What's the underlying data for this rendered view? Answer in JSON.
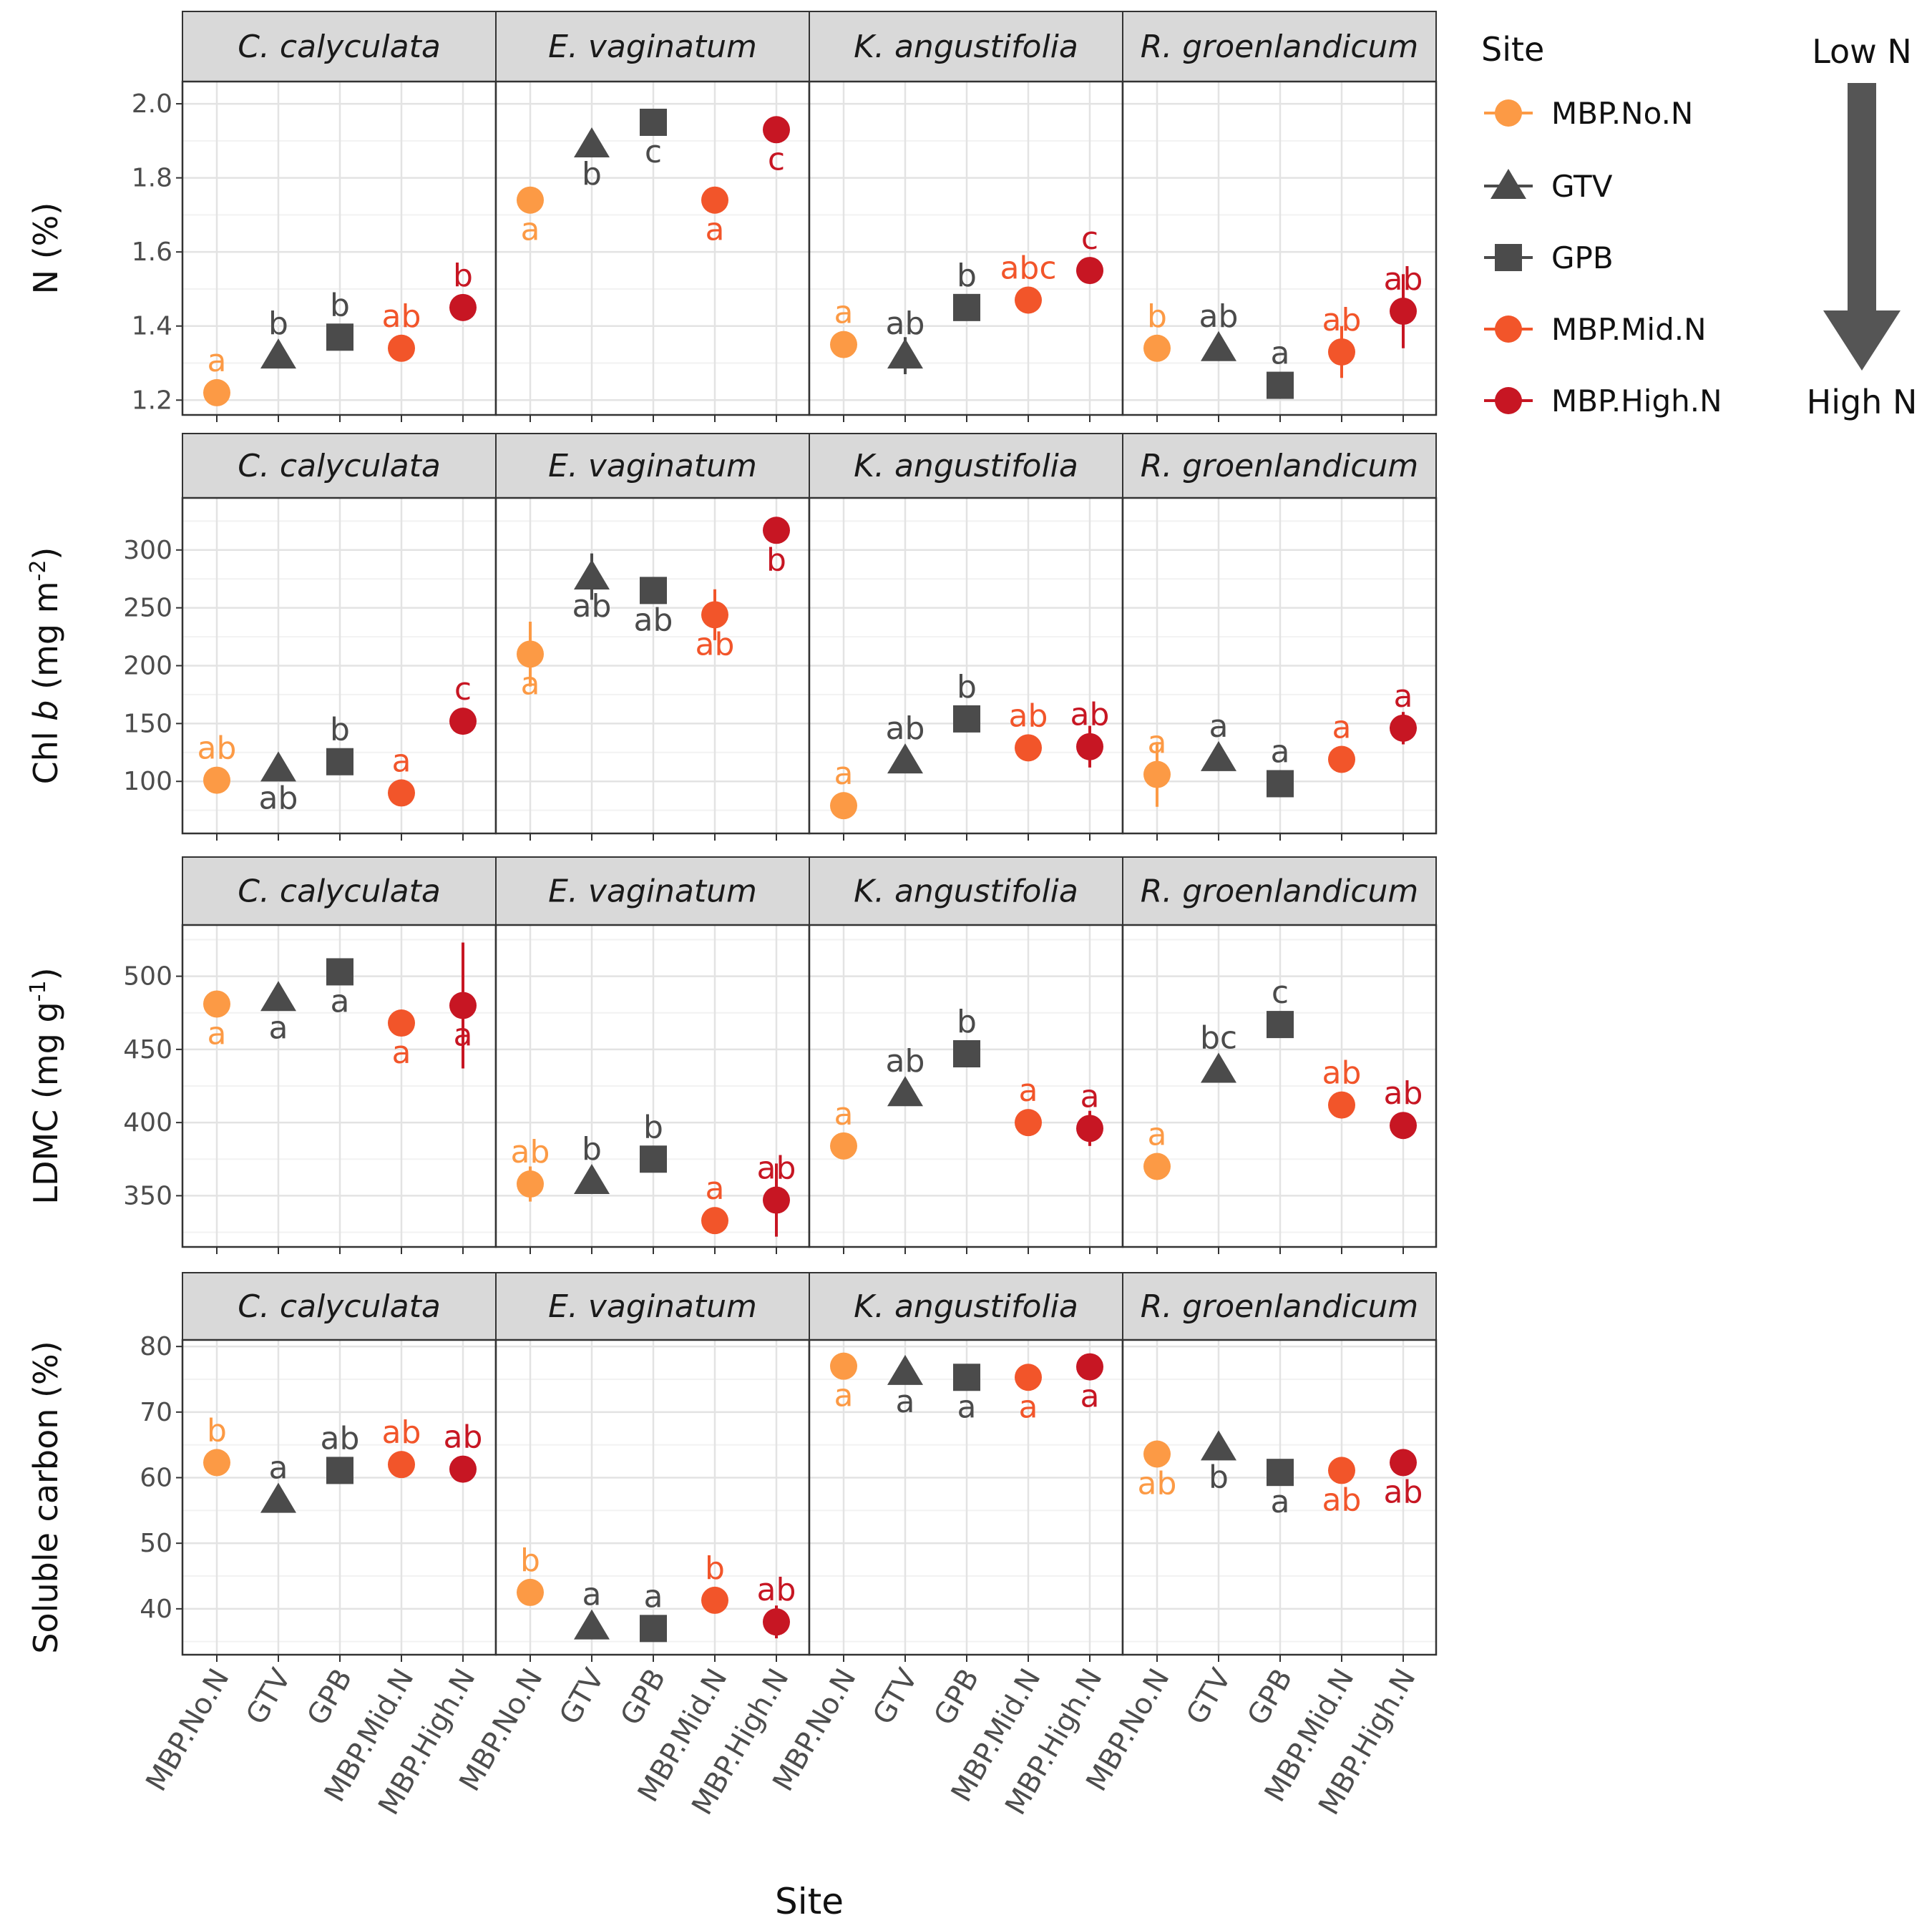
{
  "chart_data": {
    "type": "scatter",
    "xlabel": "Site",
    "sites": [
      "MBP.No.N",
      "GTV",
      "GPB",
      "MBP.Mid.N",
      "MBP.High.N"
    ],
    "species": [
      "C. calyculata",
      "E. vaginatum",
      "K. angustifolia",
      "R. groenlandicum"
    ],
    "legend": {
      "title": "Site",
      "position": "right",
      "entries": [
        {
          "name": "MBP.No.N",
          "shape": "circle",
          "color": "#fc9a45"
        },
        {
          "name": "GTV",
          "shape": "triangle",
          "color": "#4b4b4b"
        },
        {
          "name": "GPB",
          "shape": "square",
          "color": "#4b4b4b"
        },
        {
          "name": "MBP.Mid.N",
          "shape": "circle",
          "color": "#f2552a"
        },
        {
          "name": "MBP.High.N",
          "shape": "circle",
          "color": "#c71623"
        }
      ]
    },
    "gradient": {
      "top_label": "Low N",
      "bottom_label": "High N"
    },
    "panels": [
      {
        "ylabel": "N (%)",
        "ylim": [
          1.16,
          2.06
        ],
        "yticks": [
          1.2,
          1.4,
          1.6,
          1.8,
          2.0
        ],
        "ytick_labels": [
          "1.2",
          "1.4",
          "1.6",
          "1.8",
          "2.0"
        ],
        "facets": [
          {
            "values": [
              1.22,
              1.32,
              1.37,
              1.34,
              1.45
            ],
            "err": [
              0,
              0,
              0,
              0,
              0
            ],
            "letters": [
              "a",
              "b",
              "b",
              "ab",
              "b"
            ],
            "letter_pos": [
              "above",
              "above",
              "above",
              "above",
              "above"
            ]
          },
          {
            "values": [
              1.74,
              1.89,
              1.95,
              1.74,
              1.93
            ],
            "err": [
              0,
              0,
              0,
              0,
              0
            ],
            "letters": [
              "a",
              "b",
              "c",
              "a",
              "c"
            ],
            "letter_pos": [
              "below",
              "below",
              "below",
              "below",
              "below"
            ]
          },
          {
            "values": [
              1.35,
              1.32,
              1.45,
              1.47,
              1.55
            ],
            "err": [
              0,
              0.05,
              0,
              0,
              0
            ],
            "letters": [
              "a",
              "ab",
              "b",
              "abc",
              "c"
            ],
            "letter_pos": [
              "above",
              "above",
              "above",
              "above",
              "above"
            ]
          },
          {
            "values": [
              1.34,
              1.34,
              1.24,
              1.33,
              1.44
            ],
            "err": [
              0,
              0,
              0,
              0.07,
              0.1
            ],
            "letters": [
              "b",
              "ab",
              "a",
              "ab",
              "ab"
            ],
            "letter_pos": [
              "above",
              "above",
              "above",
              "above",
              "above"
            ]
          }
        ]
      },
      {
        "ylabel": "Chl b (mg m-2)",
        "ylim": [
          55,
          345
        ],
        "yticks": [
          100,
          150,
          200,
          250,
          300
        ],
        "ytick_labels": [
          "100",
          "150",
          "200",
          "250",
          "300"
        ],
        "facets": [
          {
            "values": [
              101,
              111,
              117,
              90,
              152
            ],
            "err": [
              0,
              0,
              0,
              0,
              0
            ],
            "letters": [
              "ab",
              "ab",
              "b",
              "a",
              "c"
            ],
            "letter_pos": [
              "above",
              "below",
              "above",
              "above",
              "above"
            ]
          },
          {
            "values": [
              210,
              277,
              265,
              244,
              317
            ],
            "err": [
              28,
              20,
              0,
              22,
              0
            ],
            "letters": [
              "a",
              "ab",
              "ab",
              "ab",
              "b"
            ],
            "letter_pos": [
              "below",
              "below",
              "below",
              "below",
              "below"
            ]
          },
          {
            "values": [
              79,
              118,
              154,
              129,
              130
            ],
            "err": [
              0,
              0,
              0,
              0,
              18
            ],
            "letters": [
              "a",
              "ab",
              "b",
              "ab",
              "ab"
            ],
            "letter_pos": [
              "above",
              "above",
              "above",
              "above",
              "above"
            ]
          },
          {
            "values": [
              106,
              120,
              98,
              119,
              146
            ],
            "err": [
              28,
              0,
              0,
              0,
              14
            ],
            "letters": [
              "a",
              "a",
              "a",
              "a",
              "a"
            ],
            "letter_pos": [
              "above",
              "above",
              "above",
              "above",
              "above"
            ]
          }
        ]
      },
      {
        "ylabel": "LDMC (mg g-1)",
        "ylim": [
          315,
          535
        ],
        "yticks": [
          350,
          400,
          450,
          500
        ],
        "ytick_labels": [
          "350",
          "400",
          "450",
          "500"
        ],
        "facets": [
          {
            "values": [
              481,
              485,
              503,
              468,
              480
            ],
            "err": [
              0,
              0,
              0,
              0,
              43
            ],
            "letters": [
              "a",
              "a",
              "a",
              "a",
              "a"
            ],
            "letter_pos": [
              "below",
              "below",
              "below",
              "below",
              "below"
            ]
          },
          {
            "values": [
              358,
              360,
              375,
              333,
              347
            ],
            "err": [
              12,
              0,
              0,
              0,
              25
            ],
            "letters": [
              "ab",
              "b",
              "b",
              "a",
              "ab"
            ],
            "letter_pos": [
              "above",
              "above",
              "above",
              "above",
              "above"
            ]
          },
          {
            "values": [
              384,
              420,
              447,
              400,
              396
            ],
            "err": [
              0,
              0,
              0,
              0,
              12
            ],
            "letters": [
              "a",
              "ab",
              "b",
              "a",
              "a"
            ],
            "letter_pos": [
              "above",
              "above",
              "above",
              "above",
              "above"
            ]
          },
          {
            "values": [
              370,
              436,
              467,
              412,
              398
            ],
            "err": [
              0,
              0,
              0,
              0,
              0
            ],
            "letters": [
              "a",
              "bc",
              "c",
              "ab",
              "ab"
            ],
            "letter_pos": [
              "above",
              "above",
              "above",
              "above",
              "above"
            ]
          }
        ]
      },
      {
        "ylabel": "Soluble carbon (%)",
        "ylim": [
          33,
          81
        ],
        "yticks": [
          40,
          50,
          60,
          70,
          80
        ],
        "ytick_labels": [
          "40",
          "50",
          "60",
          "70",
          "80"
        ],
        "facets": [
          {
            "values": [
              62.3,
              56.6,
              61.1,
              62.0,
              61.3
            ],
            "err": [
              0,
              0,
              0,
              0,
              0
            ],
            "letters": [
              "b",
              "a",
              "ab",
              "ab",
              "ab"
            ],
            "letter_pos": [
              "above",
              "above",
              "above",
              "above",
              "above"
            ]
          },
          {
            "values": [
              42.5,
              37.3,
              37.0,
              41.3,
              38.0
            ],
            "err": [
              0,
              0,
              0,
              0,
              2.5
            ],
            "letters": [
              "b",
              "a",
              "a",
              "b",
              "ab"
            ],
            "letter_pos": [
              "above",
              "above",
              "above",
              "above",
              "above"
            ]
          },
          {
            "values": [
              77.0,
              76.1,
              75.3,
              75.3,
              76.9
            ],
            "err": [
              0,
              0,
              0,
              0,
              0
            ],
            "letters": [
              "a",
              "a",
              "a",
              "a",
              "a"
            ],
            "letter_pos": [
              "below",
              "below",
              "below",
              "below",
              "below"
            ]
          },
          {
            "values": [
              63.6,
              64.6,
              60.8,
              61.1,
              62.3
            ],
            "err": [
              0,
              0,
              0,
              0,
              0
            ],
            "letters": [
              "ab",
              "b",
              "a",
              "ab",
              "ab"
            ],
            "letter_pos": [
              "below",
              "below",
              "below",
              "below",
              "below"
            ]
          }
        ]
      }
    ]
  }
}
